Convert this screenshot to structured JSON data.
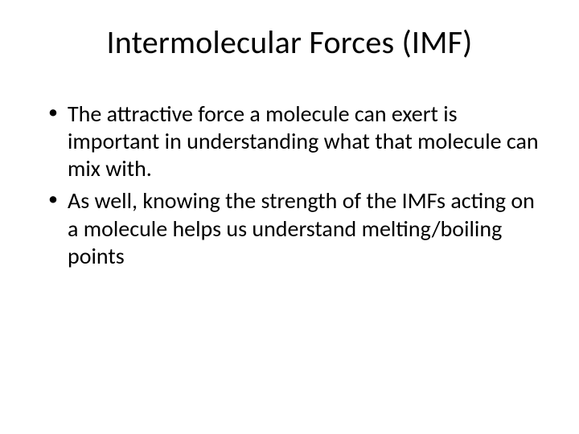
{
  "slide": {
    "title": "Intermolecular Forces (IMF)",
    "bullets": [
      "The attractive force a molecule can exert is important in understanding what that molecule can mix with.",
      "As well, knowing the strength of the IMFs acting on a molecule helps us understand melting/boiling points"
    ],
    "background_color": "#ffffff",
    "text_color": "#000000",
    "title_fontsize": 40,
    "body_fontsize": 28
  }
}
